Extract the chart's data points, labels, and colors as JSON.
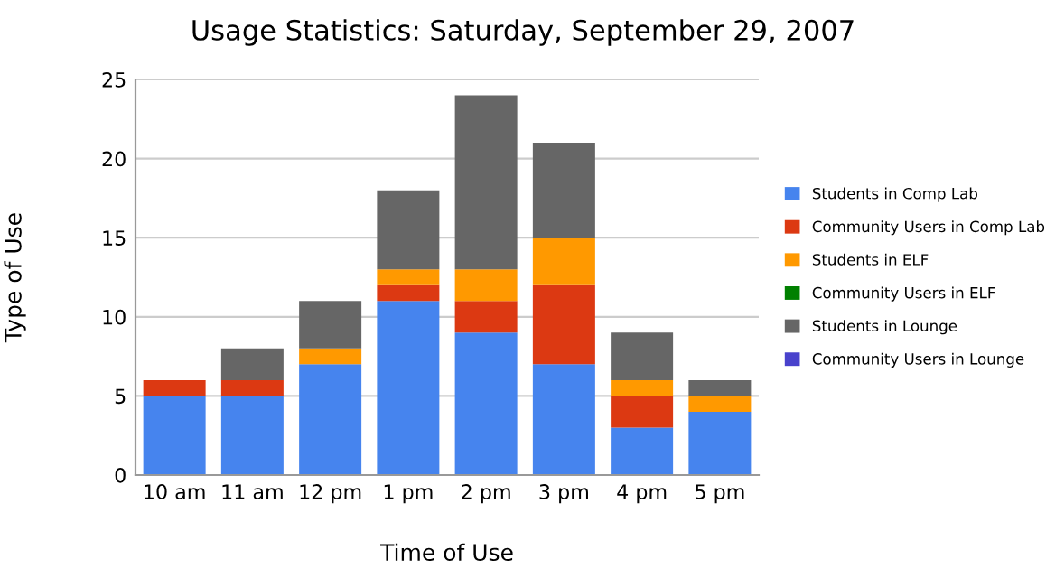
{
  "chart_data": {
    "type": "bar",
    "title": "Usage Statistics: Saturday, September 29, 2007",
    "xlabel": "Time of Use",
    "ylabel": "Type of Use",
    "categories": [
      "10 am",
      "11 am",
      "12 pm",
      "1 pm",
      "2 pm",
      "3 pm",
      "4 pm",
      "5 pm"
    ],
    "stacked": true,
    "series": [
      {
        "name": "Students in Comp Lab",
        "color": "#4684ee",
        "values": [
          5,
          5,
          7,
          11,
          9,
          7,
          3,
          4
        ]
      },
      {
        "name": "Community Users in Comp Lab",
        "color": "#dc3912",
        "values": [
          1,
          1,
          0,
          1,
          2,
          5,
          2,
          0
        ]
      },
      {
        "name": "Students in ELF",
        "color": "#ff9900",
        "values": [
          0,
          0,
          1,
          1,
          2,
          3,
          1,
          1
        ]
      },
      {
        "name": "Community Users in ELF",
        "color": "#008000",
        "values": [
          0,
          0,
          0,
          0,
          0,
          0,
          0,
          0
        ]
      },
      {
        "name": "Students in Lounge",
        "color": "#666666",
        "values": [
          0,
          2,
          3,
          5,
          11,
          6,
          3,
          1
        ]
      },
      {
        "name": "Community Users in Lounge",
        "color": "#4942cc",
        "values": [
          0,
          0,
          0,
          0,
          0,
          0,
          0,
          0
        ]
      }
    ],
    "ylim": [
      0,
      25
    ],
    "yticks": [
      0,
      5,
      10,
      15,
      20,
      25
    ],
    "grid": "y",
    "legend": "right"
  }
}
